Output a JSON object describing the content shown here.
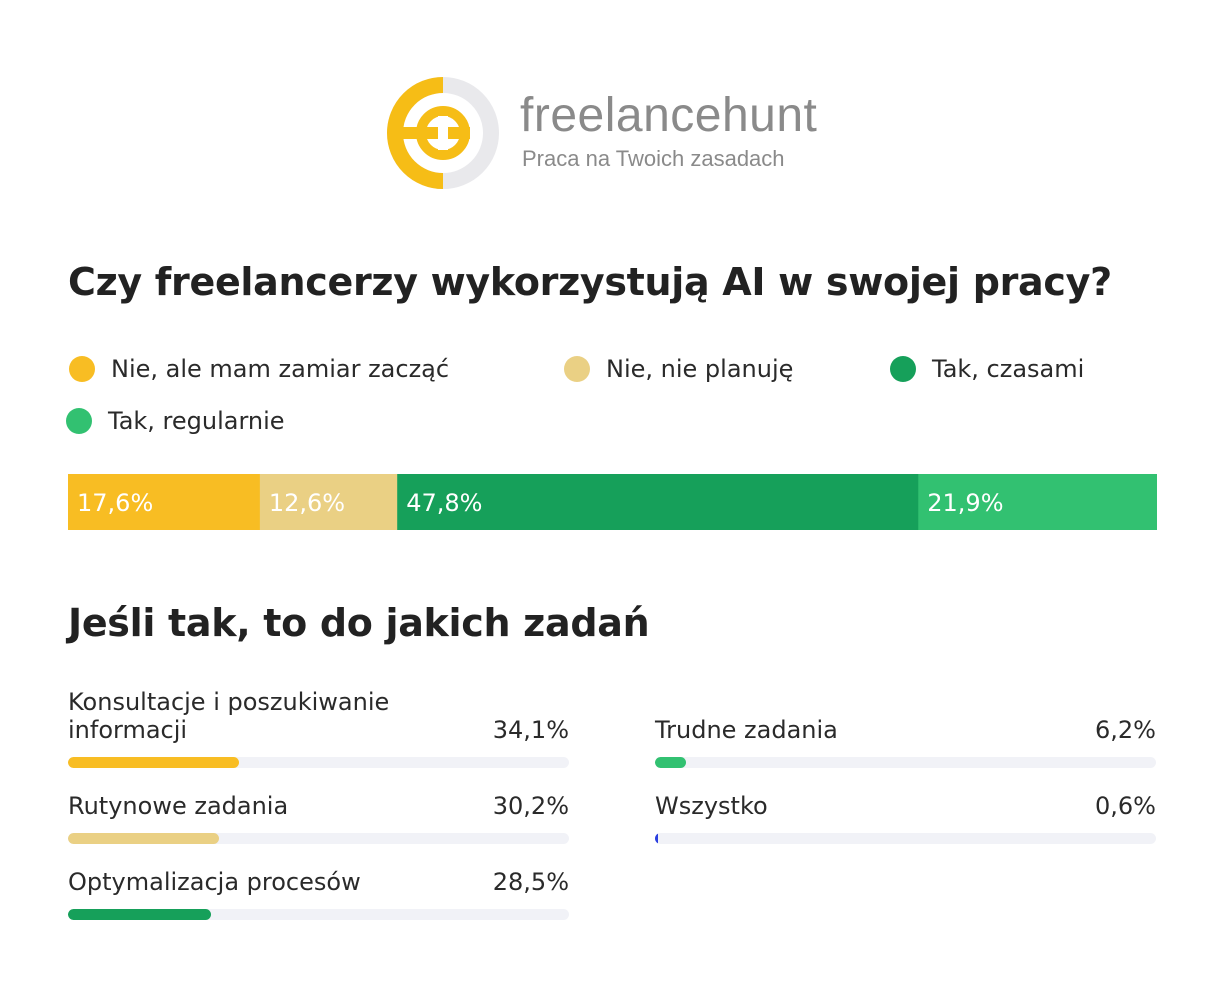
{
  "brand": {
    "name": "freelancehunt",
    "tagline": "Praca na Twoich zasadach",
    "colors": {
      "yellow": "#f6bd16",
      "grey_ring": "#e9e9ec",
      "text": "#8a8a8a"
    }
  },
  "chart_data": [
    {
      "type": "bar",
      "orientation": "horizontal-stacked",
      "title": "Czy freelancerzy wykorzystują AI w swojej pracy?",
      "categories": [
        "Nie, ale mam zamiar zacząć",
        "Nie, nie planuję",
        "Tak, czasami",
        "Tak, regularnie"
      ],
      "values": [
        17.6,
        12.6,
        47.8,
        21.9
      ],
      "labels": [
        "17,6%",
        "12,6%",
        "47,8%",
        "21,9%"
      ],
      "colors": [
        "#f8bd23",
        "#ead084",
        "#16a05a",
        "#32c171"
      ],
      "legend_position": "top",
      "unit": "%"
    },
    {
      "type": "bar",
      "orientation": "horizontal",
      "title": "Jeśli tak, to do jakich zadań",
      "categories": [
        "Konsultacje i poszukiwanie informacji",
        "Rutynowe zadania",
        "Optymalizacja procesów",
        "Trudne zadania",
        "Wszystko"
      ],
      "values": [
        34.1,
        30.2,
        28.5,
        6.2,
        0.6
      ],
      "labels": [
        "34,1%",
        "30,2%",
        "28,5%",
        "6,2%",
        "0,6%"
      ],
      "colors": [
        "#f8bd23",
        "#ead084",
        "#16a05a",
        "#32c171",
        "#2b3fe0"
      ],
      "xlim": [
        0,
        100
      ],
      "unit": "%"
    }
  ]
}
